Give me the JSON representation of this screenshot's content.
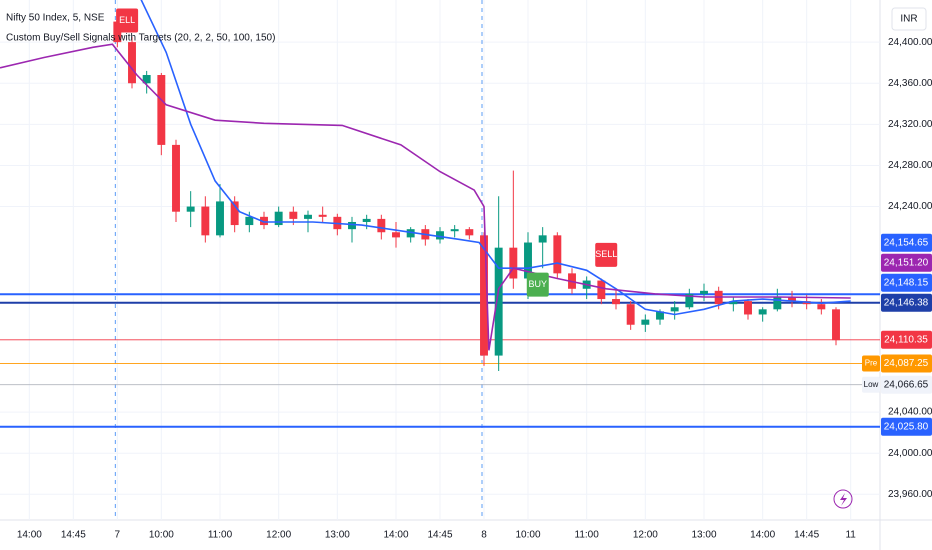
{
  "chart_data": {
    "type": "candlestick",
    "title": "Nifty 50 Index, 5, NSE",
    "subtitle": "Custom Buy/Sell Signals with Targets (20, 2, 2, 50, 100, 150)",
    "currency": "INR",
    "up_color": "#089981",
    "down_color": "#f23645",
    "x": [
      0,
      3,
      6,
      9,
      12,
      15,
      18,
      21,
      24,
      27,
      30,
      33,
      36,
      39,
      42,
      45,
      48,
      51,
      54,
      57,
      60,
      63,
      66,
      69,
      72,
      75,
      78,
      81,
      84,
      87,
      90,
      93,
      96,
      99,
      102,
      105,
      108,
      111,
      114,
      117,
      120,
      123,
      126,
      129,
      132,
      135,
      138,
      141,
      144,
      147
    ],
    "open": [
      24420,
      24400,
      24360,
      24368,
      24300,
      24235,
      24240,
      24212,
      24245,
      24222,
      24230,
      24222,
      24235,
      24228,
      24232,
      24230,
      24218,
      24225,
      24228,
      24215,
      24210,
      24218,
      24208,
      24216,
      24218,
      24212,
      24095,
      24200,
      24170,
      24205,
      24212,
      24175,
      24160,
      24168,
      24150,
      24145,
      24125,
      24130,
      24138,
      24142,
      24155,
      24158,
      24145,
      24148,
      24135,
      24140,
      24152,
      24148,
      24145,
      24140
    ],
    "high": [
      24430,
      24405,
      24372,
      24370,
      24305,
      24255,
      24250,
      24262,
      24250,
      24235,
      24235,
      24240,
      24240,
      24236,
      24240,
      24233,
      24230,
      24232,
      24232,
      24225,
      24220,
      24222,
      24220,
      24222,
      24220,
      24215,
      24250,
      24275,
      24215,
      24220,
      24215,
      24180,
      24172,
      24170,
      24160,
      24148,
      24135,
      24140,
      24148,
      24160,
      24165,
      24162,
      24152,
      24150,
      24142,
      24160,
      24158,
      24154,
      24150,
      24142
    ],
    "low": [
      24395,
      24355,
      24350,
      24290,
      24225,
      24220,
      24205,
      24210,
      24215,
      24215,
      24218,
      24220,
      24222,
      24215,
      24225,
      24212,
      24205,
      24218,
      24208,
      24200,
      24205,
      24202,
      24204,
      24210,
      24208,
      24085,
      24080,
      24160,
      24150,
      24180,
      24170,
      24155,
      24150,
      24145,
      24140,
      24120,
      24118,
      24125,
      24130,
      24140,
      24148,
      24140,
      24138,
      24130,
      24128,
      24138,
      24142,
      24140,
      24135,
      24105
    ],
    "close": [
      24400,
      24360,
      24368,
      24300,
      24235,
      24240,
      24212,
      24245,
      24222,
      24230,
      24222,
      24235,
      24228,
      24232,
      24230,
      24218,
      24225,
      24228,
      24215,
      24210,
      24218,
      24208,
      24216,
      24218,
      24212,
      24095,
      24200,
      24170,
      24205,
      24212,
      24175,
      24160,
      24168,
      24150,
      24145,
      24125,
      24130,
      24138,
      24142,
      24155,
      24158,
      24145,
      24148,
      24135,
      24140,
      24152,
      24148,
      24145,
      24140,
      24110
    ],
    "series": [
      {
        "color": "#2962ff",
        "x": [
          4,
          10,
          15,
          20,
          25,
          30,
          40,
          50,
          60,
          70,
          74,
          78,
          84,
          90,
          96,
          102,
          108,
          114,
          120,
          126,
          132,
          138,
          144,
          150
        ],
        "values": [
          24450,
          24390,
          24320,
          24265,
          24235,
          24225,
          24225,
          24222,
          24215,
          24208,
          24205,
          24180,
          24180,
          24185,
          24178,
          24160,
          24140,
          24135,
          24140,
          24148,
          24150,
          24148,
          24146,
          24148
        ]
      },
      {
        "color": "#9c27b0",
        "x": [
          -24,
          -15,
          -5,
          -1,
          4,
          10,
          20,
          30,
          46,
          58,
          66,
          73,
          75,
          76,
          78,
          81,
          90,
          100,
          110,
          120,
          135,
          150
        ],
        "values": [
          24375,
          24385,
          24395,
          24398,
          24368,
          24339,
          24324,
          24321,
          24319,
          24300,
          24274,
          24256,
          24240,
          24100,
          24160,
          24180,
          24170,
          24160,
          24155,
          24152,
          24152,
          24151
        ]
      }
    ],
    "levels": [
      {
        "value": 24154.65,
        "label": "24,154.65",
        "color": "#2962ff",
        "line": true
      },
      {
        "value": 24151.2,
        "label": "24,151.20",
        "color": "#9c27b0",
        "line": false
      },
      {
        "value": 24148.15,
        "label": "24,148.15",
        "color": "#2962ff",
        "line": false
      },
      {
        "value": 24146.38,
        "label": "24,146.38",
        "color": "#1e3fa8",
        "line": true
      },
      {
        "value": 24110.35,
        "label": "24,110.35",
        "color": "#f23645",
        "line": true
      },
      {
        "value": 24087.25,
        "label": "24,087.25",
        "color": "#ff9800",
        "line": true,
        "tag": "Pre"
      },
      {
        "value": 24066.65,
        "label": "24,066.65",
        "color": "#b2b5be",
        "line": true,
        "tag": "Low"
      },
      {
        "value": 24025.8,
        "label": "24,025.80",
        "color": "#2962ff",
        "line": true
      }
    ],
    "signals": [
      {
        "text": "ELL",
        "x": 2,
        "y": 24421,
        "color": "#f23645"
      },
      {
        "text": "BUY",
        "x": 86,
        "y": 24164,
        "color": "#4caf50"
      },
      {
        "text": "SELL",
        "x": 100,
        "y": 24193,
        "color": "#f23645"
      }
    ],
    "day_breaks": [
      0,
      75
    ],
    "xlim": [
      -24,
      156
    ],
    "ylim": [
      23935,
      24441
    ],
    "yticks": [
      {
        "value": 24400,
        "label": "24,400.00"
      },
      {
        "value": 24360,
        "label": "24,360.00"
      },
      {
        "value": 24320,
        "label": "24,320.00"
      },
      {
        "value": 24280,
        "label": "24,280.00"
      },
      {
        "value": 24240,
        "label": "24,240.00"
      },
      {
        "value": 24040,
        "label": "24,040.00"
      },
      {
        "value": 24000,
        "label": "24,000.00"
      },
      {
        "value": 23960,
        "label": "23,960.00"
      }
    ],
    "xticks": [
      {
        "value": -18,
        "label": "14:00"
      },
      {
        "value": -9,
        "label": "14:45"
      },
      {
        "value": 0,
        "label": "7"
      },
      {
        "value": 9,
        "label": "10:00"
      },
      {
        "value": 21,
        "label": "11:00"
      },
      {
        "value": 33,
        "label": "12:00"
      },
      {
        "value": 45,
        "label": "13:00"
      },
      {
        "value": 57,
        "label": "14:00"
      },
      {
        "value": 66,
        "label": "14:45"
      },
      {
        "value": 75,
        "label": "8"
      },
      {
        "value": 84,
        "label": "10:00"
      },
      {
        "value": 96,
        "label": "11:00"
      },
      {
        "value": 108,
        "label": "12:00"
      },
      {
        "value": 120,
        "label": "13:00"
      },
      {
        "value": 132,
        "label": "14:00"
      },
      {
        "value": 141,
        "label": "14:45"
      },
      {
        "value": 150,
        "label": "11"
      }
    ]
  }
}
